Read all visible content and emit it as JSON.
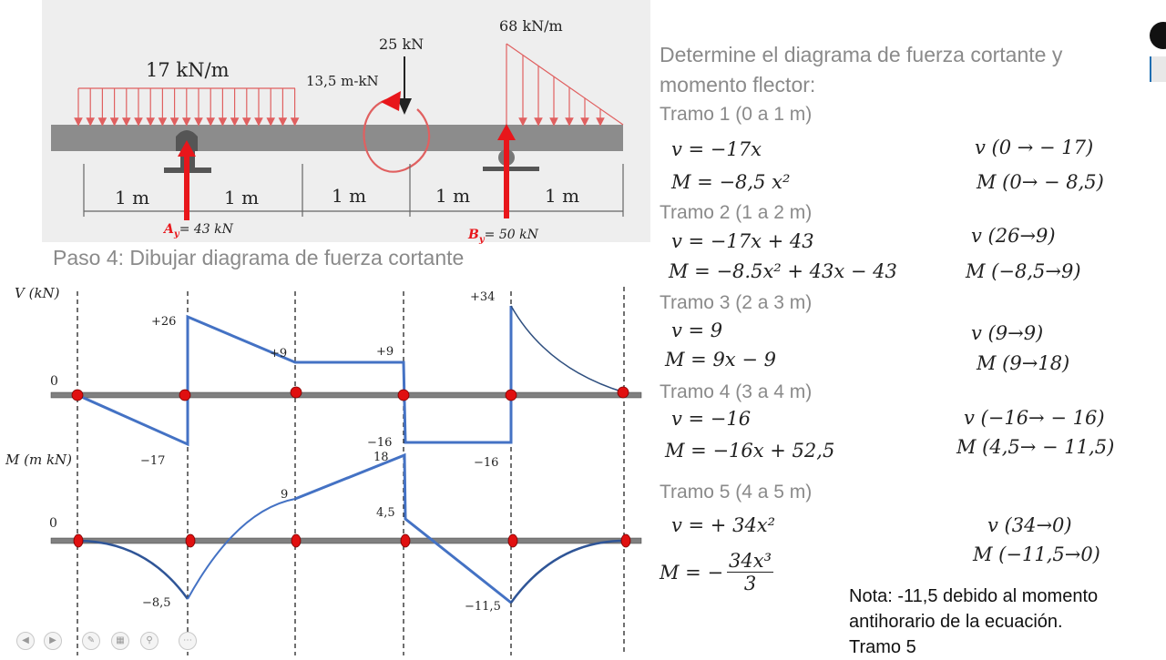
{
  "beam": {
    "distributed_load_1": "17 kN/m",
    "point_load": "25 kN",
    "moment": "13,5 m-kN",
    "distributed_load_2": "68 kN/m",
    "spans": [
      "1 m",
      "1 m",
      "1 m",
      "1 m",
      "1 m"
    ],
    "reaction_a_label": "A",
    "reaction_a_sub": "y",
    "reaction_a_value": "= 43 kN",
    "reaction_b_label": "B",
    "reaction_b_sub": "y",
    "reaction_b_value": "= 50 kN"
  },
  "step_title": "Paso 4: Dibujar diagrama de fuerza cortante",
  "shear_diagram": {
    "axis_label": "V (kN)",
    "zero_label": "0",
    "labels": {
      "p26": "+26",
      "p9a": "+9",
      "p9b": "+9",
      "p34": "+34",
      "m17": "−17",
      "m16a": "−16",
      "m16b": "−16"
    }
  },
  "moment_diagram": {
    "axis_label": "M (m kN)",
    "zero_label": "0",
    "labels": {
      "v9": "9",
      "v18": "18",
      "v45": "4,5",
      "m85": "−8,5",
      "m115": "−11,5"
    }
  },
  "right_panel": {
    "heading_1": "Determine el diagrama de fuerza cortante y",
    "heading_2": "momento flector:",
    "tramos": [
      {
        "title": "Tramo 1 (0 a 1 m)",
        "v_eq": "v = −17x",
        "m_eq": "M = −8,5 x²",
        "v_range": "v (0 → − 17)",
        "m_range": "M (0→ − 8,5)"
      },
      {
        "title": "Tramo 2 (1 a 2 m)",
        "v_eq": "v = −17x + 43",
        "m_eq": "M = −8.5x² + 43x − 43",
        "v_range": "v (26→9)",
        "m_range": "M (−8,5→9)"
      },
      {
        "title": "Tramo 3 (2 a 3 m)",
        "v_eq": "v = 9",
        "m_eq": "M = 9x − 9",
        "v_range": "v (9→9)",
        "m_range": "M (9→18)"
      },
      {
        "title": "Tramo 4 (3 a 4 m)",
        "v_eq": "v = −16",
        "m_eq": "M = −16x + 52,5",
        "v_range": "v (−16→ − 16)",
        "m_range": "M (4,5→ − 11,5)"
      },
      {
        "title": "Tramo 5 (4 a 5 m)",
        "v_eq": "v = + 34x²",
        "m_eq_prefix": "M = −",
        "m_eq_num": "34x³",
        "m_eq_den": "3",
        "v_range": "v (34→0)",
        "m_range": "M (−11,5→0)"
      }
    ],
    "note": [
      "Nota: -11,5 debido al momento",
      "antihorario de la ecuación.",
      "Tramo 5"
    ]
  },
  "colors": {
    "diagram": "#4472c4",
    "reaction": "#e8161b",
    "load": "#e06060",
    "beam": "#8c8c8c",
    "axis": "#808080"
  }
}
